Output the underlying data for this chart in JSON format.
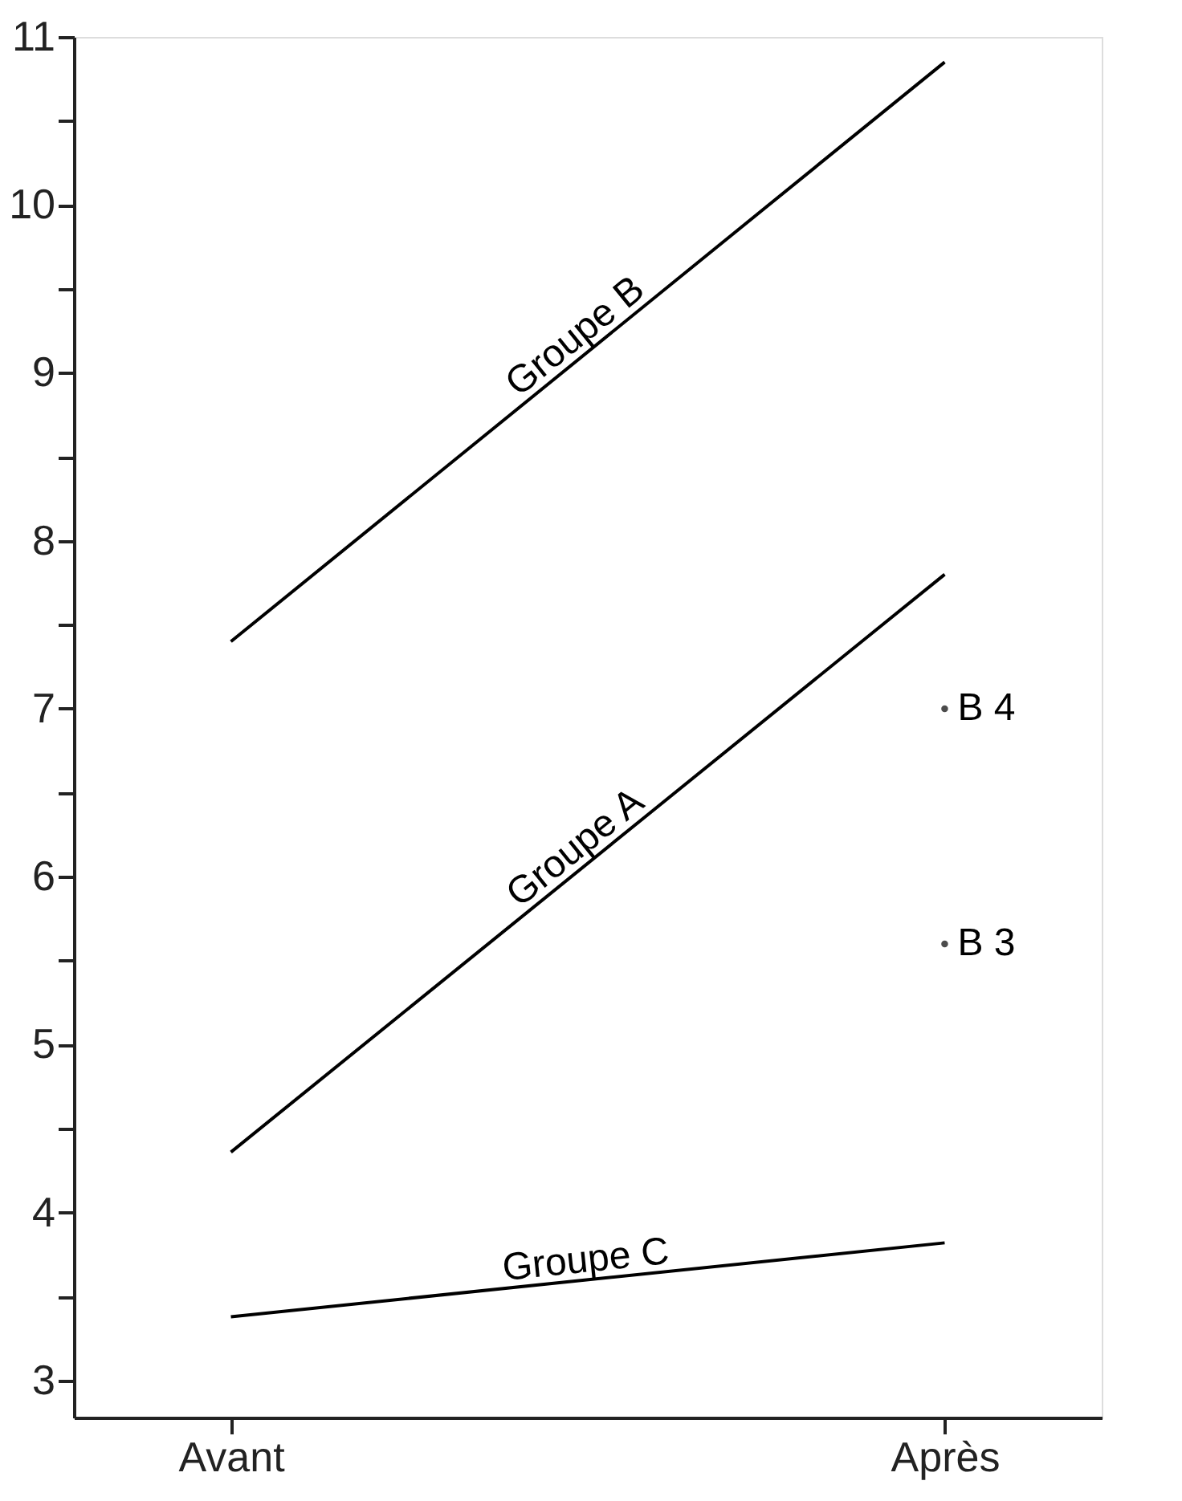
{
  "chart_data": {
    "type": "line",
    "categories": [
      "Avant",
      "Après"
    ],
    "series": [
      {
        "name": "Groupe B",
        "color": "#000000",
        "values": [
          7.4,
          10.85
        ]
      },
      {
        "name": "Groupe A",
        "color": "#000000",
        "values": [
          4.36,
          7.8
        ]
      },
      {
        "name": "Groupe C",
        "color": "#000000",
        "values": [
          3.38,
          3.82
        ]
      },
      {
        "name": "B 4",
        "type": "scatter",
        "marker": "circle",
        "color": "#000000",
        "x": [
          "Après"
        ],
        "values": [
          7.0
        ]
      },
      {
        "name": "B 3",
        "type": "scatter",
        "marker": "circle",
        "color": "#000000",
        "x": [
          "Après"
        ],
        "values": [
          5.6
        ]
      }
    ],
    "ylim": [
      2.78,
      11
    ],
    "yticks": [
      3,
      {
        "value": 3.5,
        "label": null
      },
      4,
      {
        "value": 4.5,
        "label": null
      },
      5,
      {
        "value": 5.5,
        "label": null
      },
      6,
      {
        "value": 6.5,
        "label": null
      },
      7,
      {
        "value": 7.5,
        "label": null
      },
      8,
      {
        "value": 8.5,
        "label": null
      },
      9,
      {
        "value": 9.5,
        "label": null
      },
      10,
      {
        "value": 10.5,
        "label": null
      },
      11
    ],
    "grid": false,
    "legend": false,
    "marker": "none",
    "line_style": "solid"
  }
}
